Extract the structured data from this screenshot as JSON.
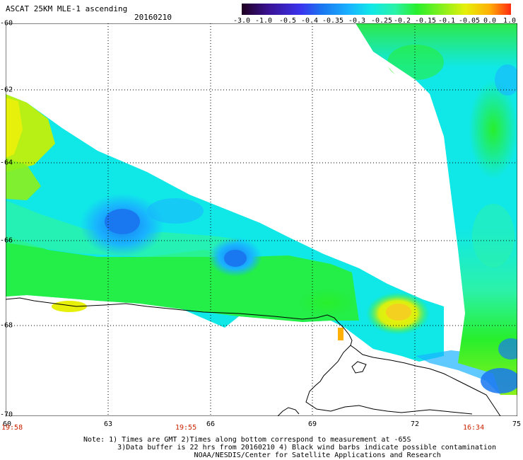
{
  "header": {
    "title": "ASCAT 25KM MLE-1 ascending",
    "date": "20160210"
  },
  "colorbar": {
    "labels": [
      "-3.0",
      "-1.0",
      "-0.5",
      "-0.4",
      "-0.35",
      "-0.3",
      "-0.25",
      "-0.2",
      "-0.15",
      "-0.1",
      "-0.05",
      "0.0",
      "1.0"
    ],
    "colors": [
      "#2a0026",
      "#3a1294",
      "#3a34ee",
      "#1978f0",
      "#19b3ff",
      "#10e8e8",
      "#2bf2a8",
      "#28ef2c",
      "#8cf01c",
      "#e6f00a",
      "#ffb006",
      "#ff3a10"
    ]
  },
  "map": {
    "y_ticks": [
      "-60",
      "-62",
      "-64",
      "-66",
      "-68",
      "-70"
    ],
    "x_ticks": [
      "60",
      "63",
      "66",
      "69",
      "72",
      "75"
    ],
    "times": [
      "19:58",
      "19:55",
      "16:34"
    ]
  },
  "note": {
    "line1": "Note: 1) Times are GMT 2)Times along bottom correspond to measurement at -65S",
    "line2": "3)Data buffer is 22 hrs from 20160210 4) Black wind barbs indicate possible contamination",
    "line3": "NOAA/NESDIS/Center for Satellite Applications and Research"
  }
}
